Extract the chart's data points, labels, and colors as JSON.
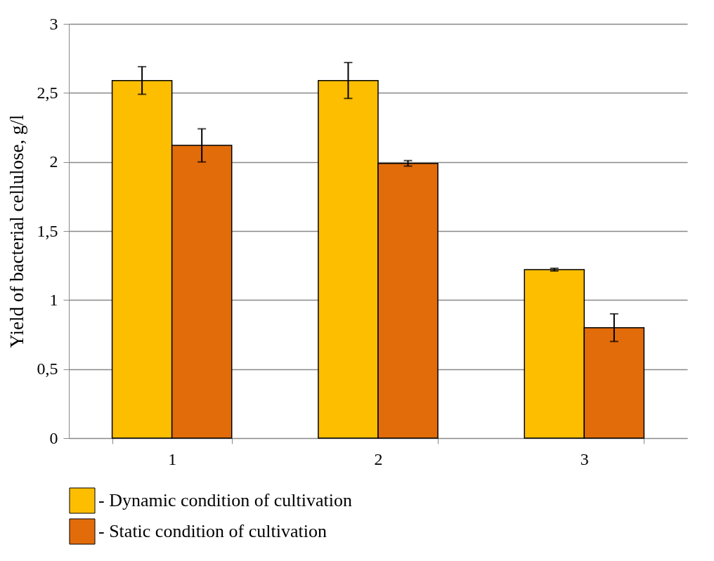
{
  "chart_data": {
    "type": "bar",
    "ylabel": "Yield of bacterial cellulose, g/l",
    "categories": [
      "1",
      "2",
      "3"
    ],
    "series": [
      {
        "name": "- Dynamic condition of cultivation",
        "color": "#fdbe00",
        "values": [
          2.59,
          2.59,
          1.22
        ],
        "errors": [
          0.1,
          0.13,
          0.01
        ]
      },
      {
        "name": "- Static condition of cultivation",
        "color": "#e36c0a",
        "values": [
          2.12,
          1.99,
          0.8
        ],
        "errors": [
          0.12,
          0.02,
          0.1
        ]
      }
    ],
    "ylim": [
      0,
      3
    ],
    "yticks": [
      0,
      {
        "value": 0.5,
        "label": "0,5"
      },
      1,
      {
        "value": 1.5,
        "label": "1,5"
      },
      2,
      {
        "value": 2.5,
        "label": "2,5"
      },
      3
    ],
    "grid": "y",
    "legend": "bottom"
  }
}
